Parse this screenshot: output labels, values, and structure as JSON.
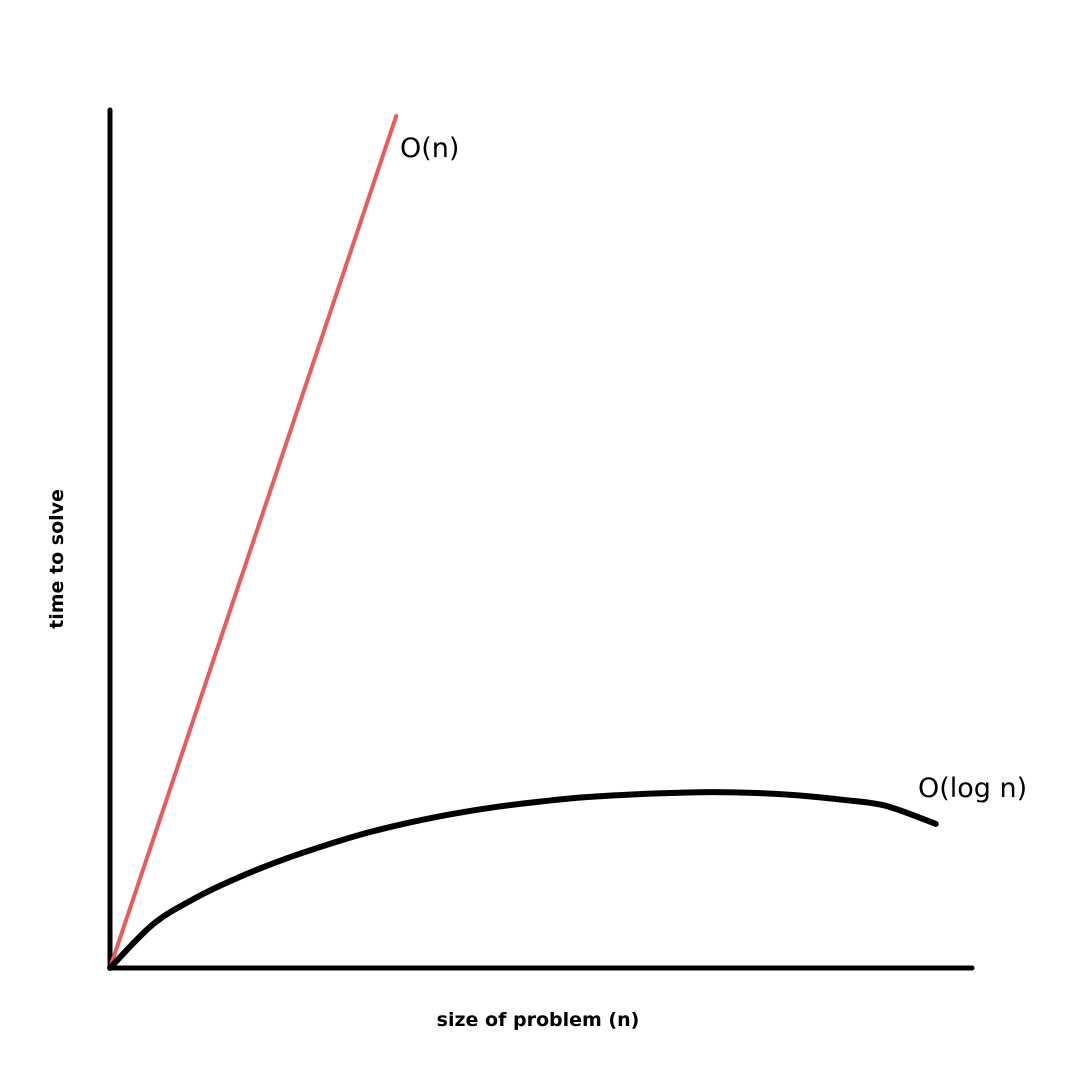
{
  "chart_data": {
    "type": "line",
    "title": "",
    "xlabel": "size of problem (n)",
    "ylabel": "time to solve",
    "xlim": [
      0,
      100
    ],
    "ylim": [
      0,
      100
    ],
    "grid": false,
    "legend": "none",
    "series": [
      {
        "name": "O(n)",
        "color": "#e85c5c",
        "x": [
          0,
          33.2
        ],
        "y": [
          0,
          99.3
        ]
      },
      {
        "name": "O(log n)",
        "color": "#000000",
        "x": [
          0,
          5,
          10,
          15,
          20,
          25,
          30,
          35,
          40,
          45,
          50,
          55,
          60,
          65,
          70,
          75,
          80,
          85,
          90,
          95.8
        ],
        "y": [
          0,
          5.1,
          8.2,
          10.6,
          12.6,
          14.3,
          15.8,
          17.0,
          18.0,
          18.8,
          19.4,
          19.9,
          20.2,
          20.4,
          20.5,
          20.4,
          20.1,
          19.6,
          18.9,
          16.8
        ]
      }
    ]
  }
}
